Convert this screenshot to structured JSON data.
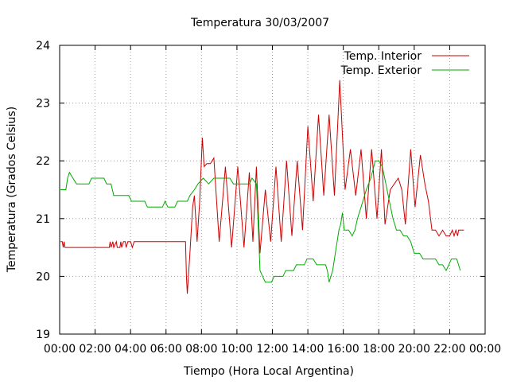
{
  "chart_data": {
    "type": "line",
    "title": "Temperatura 30/03/2007",
    "xlabel": "Tiempo (Hora Local Argentina)",
    "ylabel": "Temperatura (Grados Celsius)",
    "xlim": [
      0,
      24
    ],
    "ylim": [
      19,
      24
    ],
    "x_unit": "hours",
    "grid": true,
    "legend_position": "top-right",
    "x_ticks": [
      "00:00",
      "02:00",
      "04:00",
      "06:00",
      "08:00",
      "10:00",
      "12:00",
      "14:00",
      "16:00",
      "18:00",
      "20:00",
      "22:00",
      "00:00"
    ],
    "y_ticks": [
      "19",
      "20",
      "21",
      "22",
      "23",
      "24"
    ],
    "series": [
      {
        "name": "Temp. Interior",
        "color": "#cc0000",
        "points": [
          [
            0.05,
            20.6
          ],
          [
            0.15,
            20.6
          ],
          [
            0.2,
            20.5
          ],
          [
            0.25,
            20.6
          ],
          [
            0.3,
            20.5
          ],
          [
            2.8,
            20.5
          ],
          [
            2.85,
            20.6
          ],
          [
            2.9,
            20.5
          ],
          [
            3.0,
            20.6
          ],
          [
            3.05,
            20.5
          ],
          [
            3.2,
            20.6
          ],
          [
            3.25,
            20.5
          ],
          [
            3.4,
            20.5
          ],
          [
            3.45,
            20.6
          ],
          [
            3.5,
            20.5
          ],
          [
            3.6,
            20.6
          ],
          [
            3.7,
            20.6
          ],
          [
            3.75,
            20.5
          ],
          [
            3.85,
            20.6
          ],
          [
            4.0,
            20.6
          ],
          [
            4.1,
            20.5
          ],
          [
            4.2,
            20.6
          ],
          [
            7.1,
            20.6
          ],
          [
            7.15,
            20.0
          ],
          [
            7.2,
            19.7
          ],
          [
            7.35,
            20.4
          ],
          [
            7.5,
            21.2
          ],
          [
            7.6,
            21.4
          ],
          [
            7.75,
            20.6
          ],
          [
            7.9,
            21.3
          ],
          [
            8.05,
            22.4
          ],
          [
            8.15,
            21.9
          ],
          [
            8.3,
            21.95
          ],
          [
            8.5,
            21.95
          ],
          [
            8.7,
            22.05
          ],
          [
            9.0,
            20.6
          ],
          [
            9.35,
            21.9
          ],
          [
            9.7,
            20.5
          ],
          [
            10.05,
            21.9
          ],
          [
            10.4,
            20.5
          ],
          [
            10.7,
            21.8
          ],
          [
            10.9,
            20.6
          ],
          [
            11.1,
            21.9
          ],
          [
            11.3,
            20.4
          ],
          [
            11.6,
            21.5
          ],
          [
            11.9,
            20.6
          ],
          [
            12.2,
            21.9
          ],
          [
            12.5,
            20.6
          ],
          [
            12.8,
            22.0
          ],
          [
            13.1,
            20.7
          ],
          [
            13.4,
            22.0
          ],
          [
            13.7,
            20.8
          ],
          [
            14.0,
            22.6
          ],
          [
            14.3,
            21.3
          ],
          [
            14.6,
            22.8
          ],
          [
            14.9,
            21.4
          ],
          [
            15.2,
            22.8
          ],
          [
            15.5,
            21.4
          ],
          [
            15.8,
            23.4
          ],
          [
            16.1,
            21.5
          ],
          [
            16.4,
            22.2
          ],
          [
            16.7,
            21.4
          ],
          [
            17.0,
            22.2
          ],
          [
            17.3,
            21.0
          ],
          [
            17.6,
            22.2
          ],
          [
            17.9,
            21.0
          ],
          [
            18.15,
            22.2
          ],
          [
            18.35,
            20.9
          ],
          [
            18.65,
            21.5
          ],
          [
            19.1,
            21.7
          ],
          [
            19.3,
            21.5
          ],
          [
            19.5,
            20.9
          ],
          [
            19.8,
            22.2
          ],
          [
            20.05,
            21.2
          ],
          [
            20.35,
            22.1
          ],
          [
            20.6,
            21.6
          ],
          [
            20.8,
            21.3
          ],
          [
            21.0,
            20.8
          ],
          [
            21.2,
            20.8
          ],
          [
            21.4,
            20.7
          ],
          [
            21.6,
            20.8
          ],
          [
            21.8,
            20.7
          ],
          [
            22.0,
            20.7
          ],
          [
            22.15,
            20.8
          ],
          [
            22.25,
            20.7
          ],
          [
            22.35,
            20.8
          ],
          [
            22.45,
            20.7
          ],
          [
            22.5,
            20.8
          ],
          [
            22.8,
            20.8
          ]
        ]
      },
      {
        "name": "Temp. Exterior",
        "color": "#00aa00",
        "points": [
          [
            0.05,
            21.5
          ],
          [
            0.35,
            21.5
          ],
          [
            0.45,
            21.7
          ],
          [
            0.55,
            21.8
          ],
          [
            0.75,
            21.7
          ],
          [
            0.95,
            21.6
          ],
          [
            1.65,
            21.6
          ],
          [
            1.8,
            21.7
          ],
          [
            2.5,
            21.7
          ],
          [
            2.65,
            21.6
          ],
          [
            2.9,
            21.6
          ],
          [
            3.05,
            21.4
          ],
          [
            3.9,
            21.4
          ],
          [
            4.05,
            21.3
          ],
          [
            4.8,
            21.3
          ],
          [
            4.95,
            21.2
          ],
          [
            5.8,
            21.2
          ],
          [
            5.95,
            21.3
          ],
          [
            6.1,
            21.2
          ],
          [
            6.5,
            21.2
          ],
          [
            6.65,
            21.3
          ],
          [
            7.2,
            21.3
          ],
          [
            7.35,
            21.4
          ],
          [
            7.6,
            21.5
          ],
          [
            7.8,
            21.6
          ],
          [
            8.1,
            21.7
          ],
          [
            8.4,
            21.6
          ],
          [
            8.7,
            21.7
          ],
          [
            9.6,
            21.7
          ],
          [
            9.8,
            21.6
          ],
          [
            10.7,
            21.6
          ],
          [
            10.85,
            21.7
          ],
          [
            11.1,
            21.6
          ],
          [
            11.2,
            20.9
          ],
          [
            11.3,
            20.1
          ],
          [
            11.45,
            20.0
          ],
          [
            11.6,
            19.9
          ],
          [
            11.95,
            19.9
          ],
          [
            12.1,
            20.0
          ],
          [
            12.6,
            20.0
          ],
          [
            12.75,
            20.1
          ],
          [
            13.2,
            20.1
          ],
          [
            13.35,
            20.2
          ],
          [
            13.8,
            20.2
          ],
          [
            13.95,
            20.3
          ],
          [
            14.3,
            20.3
          ],
          [
            14.5,
            20.2
          ],
          [
            15.0,
            20.2
          ],
          [
            15.1,
            20.1
          ],
          [
            15.2,
            19.9
          ],
          [
            15.4,
            20.1
          ],
          [
            15.55,
            20.4
          ],
          [
            15.65,
            20.6
          ],
          [
            15.75,
            20.8
          ],
          [
            15.85,
            20.9
          ],
          [
            15.95,
            21.1
          ],
          [
            16.05,
            20.8
          ],
          [
            16.3,
            20.8
          ],
          [
            16.5,
            20.7
          ],
          [
            16.65,
            20.8
          ],
          [
            16.8,
            21.0
          ],
          [
            17.0,
            21.2
          ],
          [
            17.3,
            21.5
          ],
          [
            17.55,
            21.7
          ],
          [
            17.8,
            22.0
          ],
          [
            18.0,
            22.0
          ],
          [
            18.2,
            21.9
          ],
          [
            18.4,
            21.6
          ],
          [
            18.6,
            21.3
          ],
          [
            18.8,
            21.0
          ],
          [
            19.0,
            20.8
          ],
          [
            19.2,
            20.8
          ],
          [
            19.4,
            20.7
          ],
          [
            19.6,
            20.7
          ],
          [
            19.8,
            20.6
          ],
          [
            20.0,
            20.4
          ],
          [
            20.3,
            20.4
          ],
          [
            20.5,
            20.3
          ],
          [
            21.2,
            20.3
          ],
          [
            21.4,
            20.2
          ],
          [
            21.6,
            20.2
          ],
          [
            21.8,
            20.1
          ],
          [
            21.95,
            20.2
          ],
          [
            22.1,
            20.3
          ],
          [
            22.4,
            20.3
          ],
          [
            22.6,
            20.1
          ]
        ]
      }
    ]
  }
}
